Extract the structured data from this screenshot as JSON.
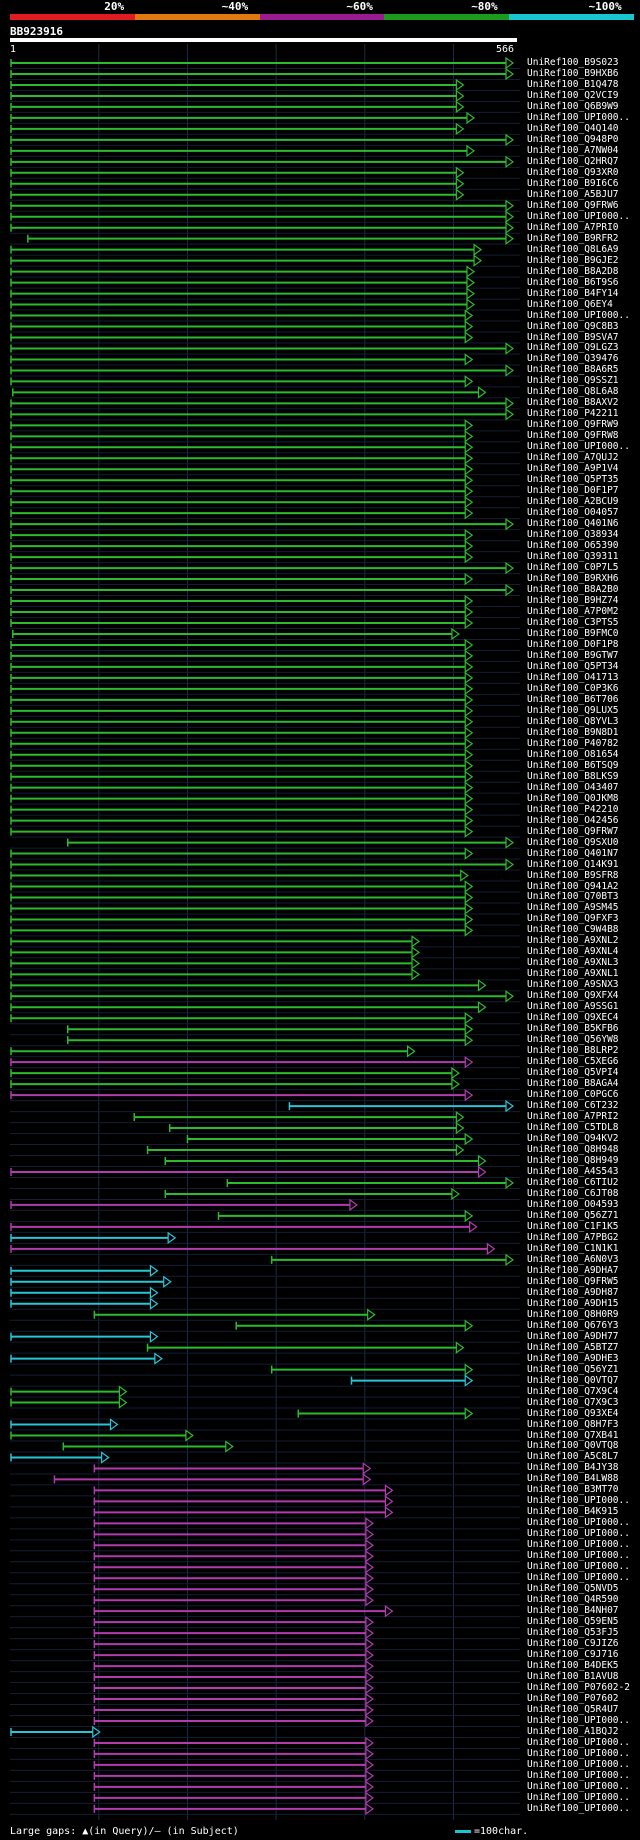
{
  "legend": {
    "labels": [
      "20%",
      "~40%",
      "~60%",
      "~80%",
      "~100%"
    ],
    "colors": [
      "#e01c22",
      "#e07a10",
      "#9a1a90",
      "#1c9a1c",
      "#18c6d0"
    ]
  },
  "query": {
    "title": "BB923916",
    "start": "1",
    "end": "566"
  },
  "footer": {
    "gaps_text": "Large gaps: ▲(in Query)/— (in Subject)",
    "scale_text": "=100char."
  },
  "chart_data": {
    "type": "alignment",
    "query_length": 566,
    "colors": {
      "green": "#2dbb2d",
      "purple": "#b23bb0",
      "cyan": "#27c5d8"
    },
    "hits": [
      {
        "name": "UniRef100_B9S023",
        "start": 1,
        "end": 566,
        "color": "green"
      },
      {
        "name": "UniRef100_B9HXB6",
        "start": 1,
        "end": 566,
        "color": "green"
      },
      {
        "name": "UniRef100_B1Q478",
        "start": 1,
        "end": 510,
        "color": "green"
      },
      {
        "name": "UniRef100_Q2VCI9",
        "start": 1,
        "end": 510,
        "color": "green"
      },
      {
        "name": "UniRef100_Q6B9W9",
        "start": 1,
        "end": 510,
        "color": "green"
      },
      {
        "name": "UniRef100_UPI000..",
        "start": 1,
        "end": 522,
        "color": "green"
      },
      {
        "name": "UniRef100_Q4Q140",
        "start": 1,
        "end": 510,
        "color": "green"
      },
      {
        "name": "UniRef100_Q948P0",
        "start": 1,
        "end": 566,
        "color": "green"
      },
      {
        "name": "UniRef100_A7NW04",
        "start": 1,
        "end": 522,
        "color": "green"
      },
      {
        "name": "UniRef100_Q2HRQ7",
        "start": 1,
        "end": 566,
        "color": "green"
      },
      {
        "name": "UniRef100_Q93XR0",
        "start": 1,
        "end": 510,
        "color": "green"
      },
      {
        "name": "UniRef100_B9I6C6",
        "start": 1,
        "end": 510,
        "color": "green"
      },
      {
        "name": "UniRef100_A5BJU7",
        "start": 1,
        "end": 510,
        "color": "green"
      },
      {
        "name": "UniRef100_Q9FRW6",
        "start": 1,
        "end": 566,
        "color": "green"
      },
      {
        "name": "UniRef100_UPI000..",
        "start": 1,
        "end": 566,
        "color": "green"
      },
      {
        "name": "UniRef100_A7PRI0",
        "start": 1,
        "end": 566,
        "color": "green"
      },
      {
        "name": "UniRef100_B9RFR2",
        "start": 20,
        "end": 566,
        "color": "green"
      },
      {
        "name": "UniRef100_Q8L6A9",
        "start": 1,
        "end": 530,
        "color": "green"
      },
      {
        "name": "UniRef100_B9GJE2",
        "start": 1,
        "end": 530,
        "color": "green"
      },
      {
        "name": "UniRef100_B8A2D8",
        "start": 1,
        "end": 522,
        "color": "green"
      },
      {
        "name": "UniRef100_B6T9S6",
        "start": 1,
        "end": 522,
        "color": "green"
      },
      {
        "name": "UniRef100_B4FY14",
        "start": 1,
        "end": 522,
        "color": "green"
      },
      {
        "name": "UniRef100_Q6EY4",
        "start": 1,
        "end": 522,
        "color": "green"
      },
      {
        "name": "UniRef100_UPI000..",
        "start": 1,
        "end": 520,
        "color": "green"
      },
      {
        "name": "UniRef100_Q9C8B3",
        "start": 1,
        "end": 520,
        "color": "green"
      },
      {
        "name": "UniRef100_B9SVA7",
        "start": 1,
        "end": 520,
        "color": "green"
      },
      {
        "name": "UniRef100_Q9LGZ3",
        "start": 1,
        "end": 566,
        "color": "green"
      },
      {
        "name": "UniRef100_Q39476",
        "start": 1,
        "end": 520,
        "color": "green"
      },
      {
        "name": "UniRef100_B8A6R5",
        "start": 1,
        "end": 566,
        "color": "green"
      },
      {
        "name": "UniRef100_Q9SSZ1",
        "start": 1,
        "end": 520,
        "color": "green"
      },
      {
        "name": "UniRef100_Q8L6A8",
        "start": 3,
        "end": 535,
        "color": "green"
      },
      {
        "name": "UniRef100_B8AXV2",
        "start": 1,
        "end": 566,
        "color": "green"
      },
      {
        "name": "UniRef100_P42211",
        "start": 1,
        "end": 566,
        "color": "green"
      },
      {
        "name": "UniRef100_Q9FRW9",
        "start": 1,
        "end": 520,
        "color": "green"
      },
      {
        "name": "UniRef100_Q9FRW8",
        "start": 1,
        "end": 520,
        "color": "green"
      },
      {
        "name": "UniRef100_UPI000..",
        "start": 1,
        "end": 520,
        "color": "green"
      },
      {
        "name": "UniRef100_A7QUJ2",
        "start": 1,
        "end": 520,
        "color": "green"
      },
      {
        "name": "UniRef100_A9P1V4",
        "start": 1,
        "end": 520,
        "color": "green"
      },
      {
        "name": "UniRef100_Q5PT35",
        "start": 1,
        "end": 520,
        "color": "green"
      },
      {
        "name": "UniRef100_D0F1P7",
        "start": 1,
        "end": 520,
        "color": "green"
      },
      {
        "name": "UniRef100_A2BCU9",
        "start": 1,
        "end": 520,
        "color": "green"
      },
      {
        "name": "UniRef100_O04057",
        "start": 1,
        "end": 520,
        "color": "green"
      },
      {
        "name": "UniRef100_Q401N6",
        "start": 1,
        "end": 566,
        "color": "green"
      },
      {
        "name": "UniRef100_Q38934",
        "start": 1,
        "end": 520,
        "color": "green"
      },
      {
        "name": "UniRef100_O65390",
        "start": 1,
        "end": 520,
        "color": "green"
      },
      {
        "name": "UniRef100_Q39311",
        "start": 1,
        "end": 520,
        "color": "green"
      },
      {
        "name": "UniRef100_C0P7L5",
        "start": 1,
        "end": 566,
        "color": "green"
      },
      {
        "name": "UniRef100_B9RXH6",
        "start": 1,
        "end": 520,
        "color": "green"
      },
      {
        "name": "UniRef100_B8A2B0",
        "start": 1,
        "end": 566,
        "color": "green"
      },
      {
        "name": "UniRef100_B9HZ74",
        "start": 1,
        "end": 520,
        "color": "green"
      },
      {
        "name": "UniRef100_A7P0M2",
        "start": 1,
        "end": 520,
        "color": "green"
      },
      {
        "name": "UniRef100_C3PTS5",
        "start": 1,
        "end": 520,
        "color": "green"
      },
      {
        "name": "UniRef100_B9FMC0",
        "start": 3,
        "end": 505,
        "color": "green"
      },
      {
        "name": "UniRef100_D0F1P8",
        "start": 1,
        "end": 520,
        "color": "green"
      },
      {
        "name": "UniRef100_B9GTW7",
        "start": 1,
        "end": 520,
        "color": "green"
      },
      {
        "name": "UniRef100_Q5PT34",
        "start": 1,
        "end": 520,
        "color": "green"
      },
      {
        "name": "UniRef100_O41713",
        "start": 1,
        "end": 520,
        "color": "green"
      },
      {
        "name": "UniRef100_C0P3K6",
        "start": 1,
        "end": 520,
        "color": "green"
      },
      {
        "name": "UniRef100_B6T706",
        "start": 1,
        "end": 520,
        "color": "green"
      },
      {
        "name": "UniRef100_Q9LUX5",
        "start": 1,
        "end": 520,
        "color": "green"
      },
      {
        "name": "UniRef100_Q8YVL3",
        "start": 1,
        "end": 520,
        "color": "green"
      },
      {
        "name": "UniRef100_B9N8D1",
        "start": 1,
        "end": 520,
        "color": "green"
      },
      {
        "name": "UniRef100_P40782",
        "start": 1,
        "end": 520,
        "color": "green"
      },
      {
        "name": "UniRef100_O81654",
        "start": 1,
        "end": 520,
        "color": "green"
      },
      {
        "name": "UniRef100_B6TSQ9",
        "start": 1,
        "end": 520,
        "color": "green"
      },
      {
        "name": "UniRef100_B8LKS9",
        "start": 1,
        "end": 520,
        "color": "green"
      },
      {
        "name": "UniRef100_O43407",
        "start": 1,
        "end": 520,
        "color": "green"
      },
      {
        "name": "UniRef100_Q0JKM8",
        "start": 1,
        "end": 520,
        "color": "green"
      },
      {
        "name": "UniRef100_P42210",
        "start": 1,
        "end": 520,
        "color": "green"
      },
      {
        "name": "UniRef100_O42456",
        "start": 1,
        "end": 520,
        "color": "green"
      },
      {
        "name": "UniRef100_Q9FRW7",
        "start": 1,
        "end": 520,
        "color": "green"
      },
      {
        "name": "UniRef100_Q9SXU0",
        "start": 65,
        "end": 566,
        "color": "green"
      },
      {
        "name": "UniRef100_Q401N7",
        "start": 1,
        "end": 520,
        "color": "green"
      },
      {
        "name": "UniRef100_Q14K91",
        "start": 1,
        "end": 566,
        "color": "green"
      },
      {
        "name": "UniRef100_B9SFR8",
        "start": 1,
        "end": 515,
        "color": "green"
      },
      {
        "name": "UniRef100_Q941A2",
        "start": 1,
        "end": 520,
        "color": "green"
      },
      {
        "name": "UniRef100_Q70BT3",
        "start": 1,
        "end": 520,
        "color": "green"
      },
      {
        "name": "UniRef100_A9SM45",
        "start": 1,
        "end": 520,
        "color": "green"
      },
      {
        "name": "UniRef100_Q9FXF3",
        "start": 1,
        "end": 520,
        "color": "green"
      },
      {
        "name": "UniRef100_C9W4B8",
        "start": 1,
        "end": 520,
        "color": "green"
      },
      {
        "name": "UniRef100_A9XNL2",
        "start": 1,
        "end": 460,
        "color": "green"
      },
      {
        "name": "UniRef100_A9XNL4",
        "start": 1,
        "end": 460,
        "color": "green"
      },
      {
        "name": "UniRef100_A9XNL3",
        "start": 1,
        "end": 460,
        "color": "green"
      },
      {
        "name": "UniRef100_A9XNL1",
        "start": 1,
        "end": 460,
        "color": "green"
      },
      {
        "name": "UniRef100_A9SNX3",
        "start": 1,
        "end": 535,
        "color": "green"
      },
      {
        "name": "UniRef100_Q9XFX4",
        "start": 1,
        "end": 566,
        "color": "green"
      },
      {
        "name": "UniRef100_A9SSG1",
        "start": 1,
        "end": 535,
        "color": "green"
      },
      {
        "name": "UniRef100_Q9XEC4",
        "start": 1,
        "end": 520,
        "color": "green"
      },
      {
        "name": "UniRef100_B5KFB6",
        "start": 65,
        "end": 520,
        "color": "green"
      },
      {
        "name": "UniRef100_Q56YW8",
        "start": 65,
        "end": 520,
        "color": "green"
      },
      {
        "name": "UniRef100_B8LRP2",
        "start": 1,
        "end": 455,
        "color": "green"
      },
      {
        "name": "UniRef100_C5XEG6",
        "start": 1,
        "end": 520,
        "color": "purple"
      },
      {
        "name": "UniRef100_Q5VPI4",
        "start": 1,
        "end": 505,
        "color": "green"
      },
      {
        "name": "UniRef100_B8AGA4",
        "start": 1,
        "end": 505,
        "color": "green"
      },
      {
        "name": "UniRef100_C0PGC6",
        "start": 1,
        "end": 520,
        "color": "purple"
      },
      {
        "name": "UniRef100_C6T232",
        "start": 315,
        "end": 566,
        "color": "cyan"
      },
      {
        "name": "UniRef100_A7PRI2",
        "start": 140,
        "end": 510,
        "color": "green"
      },
      {
        "name": "UniRef100_C5TDL8",
        "start": 180,
        "end": 510,
        "color": "green"
      },
      {
        "name": "UniRef100_Q94KV2",
        "start": 200,
        "end": 520,
        "color": "green"
      },
      {
        "name": "UniRef100_Q8H948",
        "start": 155,
        "end": 510,
        "color": "green"
      },
      {
        "name": "UniRef100_Q8H949",
        "start": 175,
        "end": 535,
        "color": "green"
      },
      {
        "name": "UniRef100_A4S543",
        "start": 1,
        "end": 535,
        "color": "purple"
      },
      {
        "name": "UniRef100_C6TIU2",
        "start": 245,
        "end": 566,
        "color": "green"
      },
      {
        "name": "UniRef100_C6JT08",
        "start": 175,
        "end": 505,
        "color": "green"
      },
      {
        "name": "UniRef100_O04593",
        "start": 1,
        "end": 390,
        "color": "purple"
      },
      {
        "name": "UniRef100_Q56Z71",
        "start": 235,
        "end": 520,
        "color": "green"
      },
      {
        "name": "UniRef100_C1F1K5",
        "start": 1,
        "end": 525,
        "color": "purple"
      },
      {
        "name": "UniRef100_A7PBG2",
        "start": 1,
        "end": 185,
        "color": "cyan"
      },
      {
        "name": "UniRef100_C1N1K1",
        "start": 1,
        "end": 545,
        "color": "purple"
      },
      {
        "name": "UniRef100_A6N0V3",
        "start": 295,
        "end": 566,
        "color": "green"
      },
      {
        "name": "UniRef100_A9DHA7",
        "start": 1,
        "end": 165,
        "color": "cyan"
      },
      {
        "name": "UniRef100_Q9FRW5",
        "start": 1,
        "end": 180,
        "color": "cyan"
      },
      {
        "name": "UniRef100_A9DH87",
        "start": 1,
        "end": 165,
        "color": "cyan"
      },
      {
        "name": "UniRef100_A9DH15",
        "start": 1,
        "end": 165,
        "color": "cyan"
      },
      {
        "name": "UniRef100_Q8H0R9",
        "start": 95,
        "end": 410,
        "color": "green"
      },
      {
        "name": "UniRef100_Q676Y3",
        "start": 255,
        "end": 520,
        "color": "green"
      },
      {
        "name": "UniRef100_A9DH77",
        "start": 1,
        "end": 165,
        "color": "cyan"
      },
      {
        "name": "UniRef100_A5BTZ7",
        "start": 155,
        "end": 510,
        "color": "green"
      },
      {
        "name": "UniRef100_A9DHE3",
        "start": 1,
        "end": 170,
        "color": "cyan"
      },
      {
        "name": "UniRef100_Q56YZ1",
        "start": 295,
        "end": 520,
        "color": "green"
      },
      {
        "name": "UniRef100_Q0VTQ7",
        "start": 385,
        "end": 520,
        "color": "cyan"
      },
      {
        "name": "UniRef100_Q7X9C4",
        "start": 1,
        "end": 130,
        "color": "green"
      },
      {
        "name": "UniRef100_Q7X9C3",
        "start": 1,
        "end": 130,
        "color": "green"
      },
      {
        "name": "UniRef100_Q93XE4",
        "start": 325,
        "end": 520,
        "color": "green"
      },
      {
        "name": "UniRef100_Q8H7F3",
        "start": 1,
        "end": 120,
        "color": "cyan"
      },
      {
        "name": "UniRef100_Q7XB41",
        "start": 1,
        "end": 205,
        "color": "green"
      },
      {
        "name": "UniRef100_Q0VTQ8",
        "start": 60,
        "end": 250,
        "color": "green"
      },
      {
        "name": "UniRef100_A5C8L7",
        "start": 1,
        "end": 110,
        "color": "cyan"
      },
      {
        "name": "UniRef100_B4JY38",
        "start": 95,
        "end": 405,
        "color": "purple"
      },
      {
        "name": "UniRef100_B4LW88",
        "start": 50,
        "end": 405,
        "color": "purple"
      },
      {
        "name": "UniRef100_B3MT70",
        "start": 95,
        "end": 430,
        "color": "purple"
      },
      {
        "name": "UniRef100_UPI000..",
        "start": 95,
        "end": 430,
        "color": "purple"
      },
      {
        "name": "UniRef100_B4K915",
        "start": 95,
        "end": 430,
        "color": "purple"
      },
      {
        "name": "UniRef100_UPI000..",
        "start": 95,
        "end": 408,
        "color": "purple"
      },
      {
        "name": "UniRef100_UPI000..",
        "start": 95,
        "end": 408,
        "color": "purple"
      },
      {
        "name": "UniRef100_UPI000..",
        "start": 95,
        "end": 408,
        "color": "purple"
      },
      {
        "name": "UniRef100_UPI000..",
        "start": 95,
        "end": 408,
        "color": "purple"
      },
      {
        "name": "UniRef100_UPI000..",
        "start": 95,
        "end": 408,
        "color": "purple"
      },
      {
        "name": "UniRef100_UPI000..",
        "start": 95,
        "end": 408,
        "color": "purple"
      },
      {
        "name": "UniRef100_Q5NVD5",
        "start": 95,
        "end": 408,
        "color": "purple"
      },
      {
        "name": "UniRef100_Q4R590",
        "start": 95,
        "end": 408,
        "color": "purple"
      },
      {
        "name": "UniRef100_B4NH07",
        "start": 95,
        "end": 430,
        "color": "purple"
      },
      {
        "name": "UniRef100_Q59EN5",
        "start": 95,
        "end": 408,
        "color": "purple"
      },
      {
        "name": "UniRef100_Q53FJ5",
        "start": 95,
        "end": 408,
        "color": "purple"
      },
      {
        "name": "UniRef100_C9JIZ6",
        "start": 95,
        "end": 408,
        "color": "purple"
      },
      {
        "name": "UniRef100_C9J716",
        "start": 95,
        "end": 408,
        "color": "purple"
      },
      {
        "name": "UniRef100_B4DEK5",
        "start": 95,
        "end": 408,
        "color": "purple"
      },
      {
        "name": "UniRef100_B1AVU8",
        "start": 95,
        "end": 408,
        "color": "purple"
      },
      {
        "name": "UniRef100_P07602-2",
        "start": 95,
        "end": 408,
        "color": "purple"
      },
      {
        "name": "UniRef100_P07602",
        "start": 95,
        "end": 408,
        "color": "purple"
      },
      {
        "name": "UniRef100_Q5R4U7",
        "start": 95,
        "end": 408,
        "color": "purple"
      },
      {
        "name": "UniRef100_UPI000..",
        "start": 95,
        "end": 408,
        "color": "purple"
      },
      {
        "name": "UniRef100_A1BQJ2",
        "start": 1,
        "end": 100,
        "color": "cyan"
      },
      {
        "name": "UniRef100_UPI000..",
        "start": 95,
        "end": 408,
        "color": "purple"
      },
      {
        "name": "UniRef100_UPI000..",
        "start": 95,
        "end": 408,
        "color": "purple"
      },
      {
        "name": "UniRef100_UPI000..",
        "start": 95,
        "end": 408,
        "color": "purple"
      },
      {
        "name": "UniRef100_UPI000..",
        "start": 95,
        "end": 408,
        "color": "purple"
      },
      {
        "name": "UniRef100_UPI000..",
        "start": 95,
        "end": 408,
        "color": "purple"
      },
      {
        "name": "UniRef100_UPI000..",
        "start": 95,
        "end": 408,
        "color": "purple"
      },
      {
        "name": "UniRef100_UPI000..",
        "start": 95,
        "end": 408,
        "color": "purple"
      }
    ]
  }
}
